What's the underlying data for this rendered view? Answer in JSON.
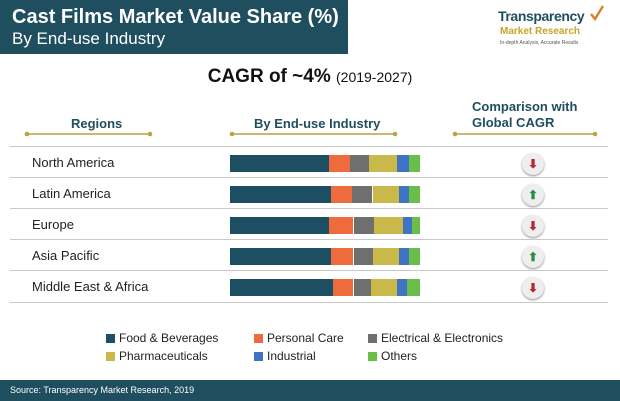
{
  "header": {
    "title": "Cast Films Market Value Share (%)",
    "subtitle": "By End-use Industry"
  },
  "logo": {
    "name": "Transparency",
    "subname": "Market Research",
    "tagline": "In-depth Analysis, Accurate Results"
  },
  "headline": {
    "cagr": "CAGR of ~4%",
    "period": "(2019-2027)"
  },
  "columns": {
    "regions": "Regions",
    "industry": "By End-use Industry",
    "comparison": "Comparison with Global CAGR"
  },
  "colors": {
    "header_bg": "#1f4e5f",
    "up": "#2e8b3e",
    "down": "#b5282f",
    "food": "#1d4f63",
    "personal": "#ee6b3d",
    "electrical": "#6f6f6f",
    "pharma": "#c9b94a",
    "industrial": "#3f74c4",
    "others": "#6abf4b"
  },
  "chart_data": {
    "type": "bar",
    "stacked": true,
    "orientation": "horizontal",
    "unit": "%",
    "categories": [
      "North America",
      "Latin America",
      "Europe",
      "Asia Pacific",
      "Middle East & Africa"
    ],
    "series": [
      {
        "name": "Food & Beverages",
        "color": "#1d4f63",
        "values": [
          52,
          53,
          52,
          53,
          54
        ]
      },
      {
        "name": "Personal Care",
        "color": "#ee6b3d",
        "values": [
          11,
          11,
          13,
          12,
          11
        ]
      },
      {
        "name": "Electrical & Electronics",
        "color": "#6f6f6f",
        "values": [
          10,
          11,
          11,
          10,
          9
        ]
      },
      {
        "name": "Pharmaceuticals",
        "color": "#c9b94a",
        "values": [
          15,
          14,
          15,
          14,
          14
        ]
      },
      {
        "name": "Industrial",
        "color": "#3f74c4",
        "values": [
          6,
          5,
          5,
          5,
          5
        ]
      },
      {
        "name": "Others",
        "color": "#6abf4b",
        "values": [
          6,
          6,
          4,
          6,
          7
        ]
      }
    ],
    "comparison": [
      "down",
      "up",
      "down",
      "up",
      "down"
    ],
    "legend_position": "bottom"
  },
  "legend_labels": [
    "Food & Beverages",
    "Personal Care",
    "Electrical & Electronics",
    "Pharmaceuticals",
    "Industrial",
    "Others"
  ],
  "footer": {
    "source": "Source: Transparency Market Research, 2019"
  }
}
